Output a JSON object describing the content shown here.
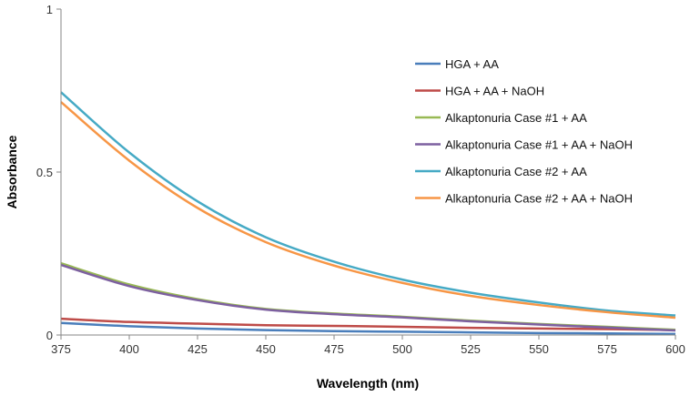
{
  "chart_data": {
    "type": "line",
    "title": "",
    "xlabel": "Wavelength (nm)",
    "ylabel": "Absorbance",
    "xlim": [
      375,
      600
    ],
    "ylim": [
      0,
      1
    ],
    "xticks": [
      "375",
      "400",
      "425",
      "450",
      "475",
      "500",
      "525",
      "550",
      "575",
      "600"
    ],
    "yticks": [
      "0",
      "0.5",
      "1"
    ],
    "grid": false,
    "legend_position": "top-right",
    "x": [
      375,
      400,
      425,
      450,
      475,
      500,
      525,
      550,
      575,
      600
    ],
    "series": [
      {
        "name": "HGA + AA",
        "color": "#4A7EBB",
        "values": [
          0.037,
          0.027,
          0.02,
          0.015,
          0.012,
          0.01,
          0.008,
          0.006,
          0.005,
          0.003
        ]
      },
      {
        "name": "HGA + AA + NaOH",
        "color": "#BE4B48",
        "values": [
          0.05,
          0.04,
          0.035,
          0.03,
          0.028,
          0.025,
          0.022,
          0.02,
          0.018,
          0.015
        ]
      },
      {
        "name": "Alkaptonuria Case #1 + AA",
        "color": "#98B954",
        "values": [
          0.22,
          0.155,
          0.11,
          0.08,
          0.066,
          0.056,
          0.044,
          0.034,
          0.025,
          0.016
        ]
      },
      {
        "name": "Alkaptonuria Case #1 + AA + NaOH",
        "color": "#7D60A0",
        "values": [
          0.215,
          0.15,
          0.107,
          0.078,
          0.064,
          0.054,
          0.042,
          0.032,
          0.023,
          0.014
        ]
      },
      {
        "name": "Alkaptonuria Case #2 + AA",
        "color": "#46AAC5",
        "values": [
          0.745,
          0.56,
          0.41,
          0.3,
          0.225,
          0.17,
          0.13,
          0.1,
          0.075,
          0.06
        ]
      },
      {
        "name": "Alkaptonuria Case #2 + AA + NaOH",
        "color": "#F79646",
        "values": [
          0.715,
          0.535,
          0.39,
          0.285,
          0.213,
          0.16,
          0.12,
          0.092,
          0.07,
          0.053
        ]
      }
    ]
  }
}
